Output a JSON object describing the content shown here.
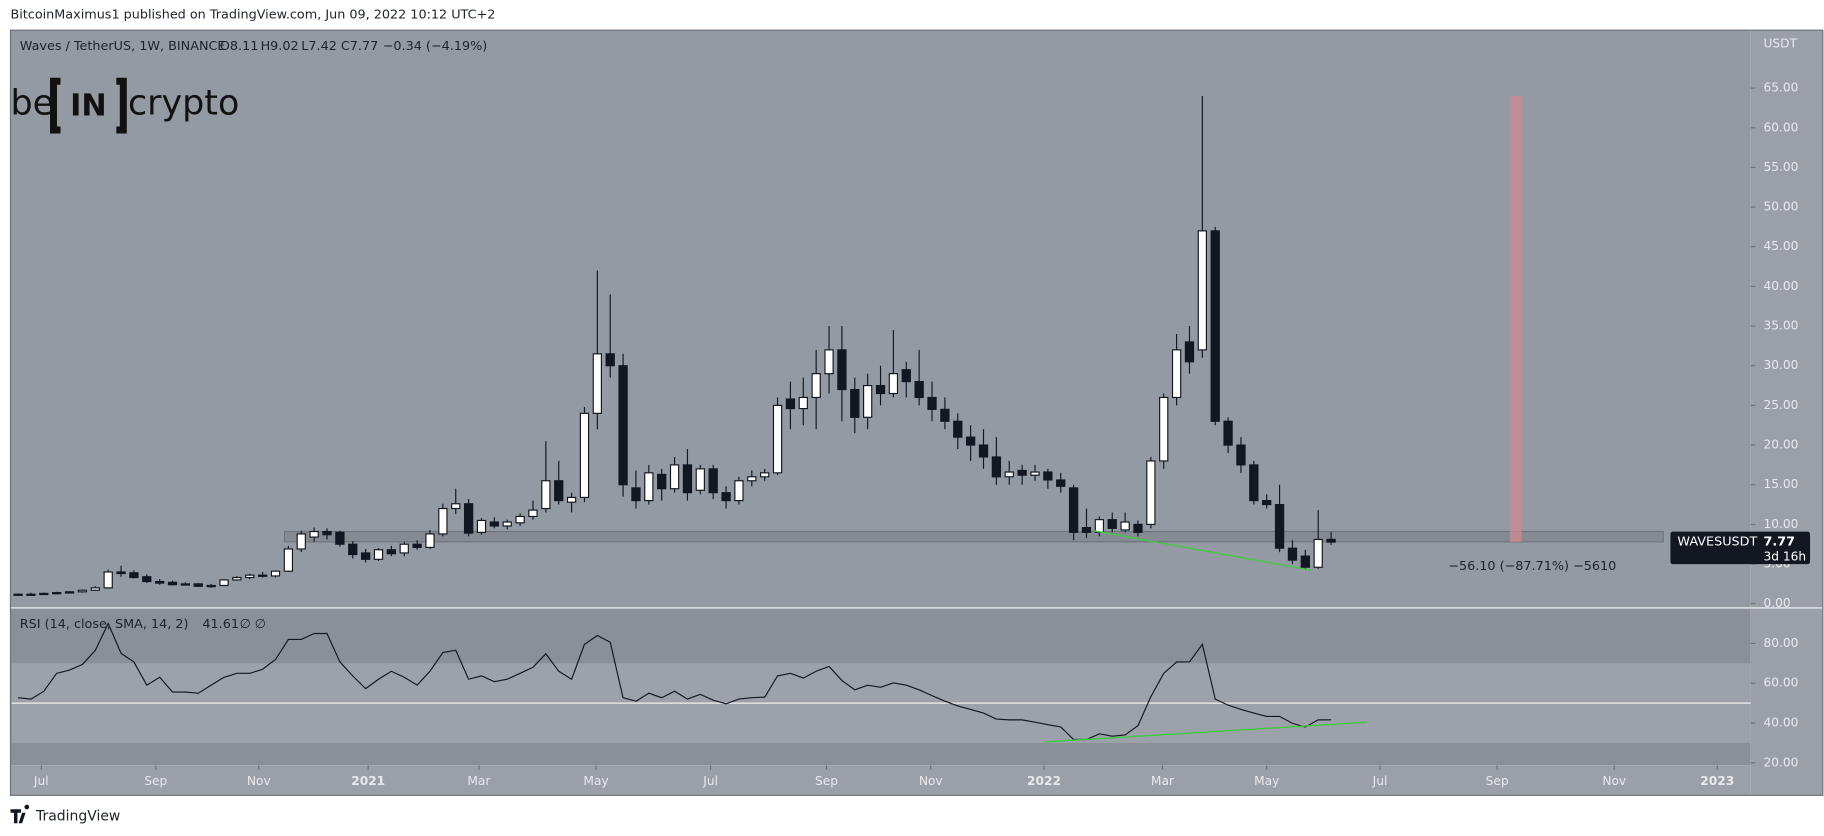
{
  "header": "BitcoinMaximus1 published on TradingView.com, Jun 09, 2022 10:12 UTC+2",
  "footer": "TradingView",
  "logo": [
    "be",
    "IN",
    "crypto"
  ],
  "chart_data": {
    "type": "candlestick",
    "symbol": "Waves / TetherUS, 1W, BINANCE",
    "legend_values": [
      "O8.11",
      "H9.02",
      "L7.42",
      "C7.77",
      "−0.34 (−4.19%)"
    ],
    "axis_unit": "USDT",
    "price_label": "WAVESUSDT",
    "countdown": "3d 16h",
    "measure_text": "−56.10 (−87.71%) −5610",
    "open": [
      1.1,
      1.2,
      1.2,
      1.3,
      1.4,
      1.5,
      1.7,
      2.0,
      4.0,
      3.9,
      3.4,
      2.8,
      2.7,
      2.4,
      2.5,
      2.2,
      2.3,
      3.0,
      3.3,
      3.6,
      3.5,
      4.1,
      6.9,
      8.4,
      9.1,
      9.0,
      7.5,
      6.4,
      5.6,
      6.8,
      6.4,
      7.5,
      7.1,
      8.8,
      12.0,
      12.6,
      9.0,
      10.3,
      9.8,
      10.2,
      11.0,
      12.0,
      15.5,
      12.8,
      13.4,
      24.0,
      31.5,
      30.0,
      14.6,
      13.0,
      16.3,
      14.5,
      17.5,
      14.3,
      17.0,
      14.0,
      13.0,
      15.5,
      16.0,
      16.5,
      25.8,
      24.6,
      26.0,
      29.0,
      32.0,
      27.0,
      23.5,
      27.5,
      26.5,
      29.5,
      28.0,
      26.0,
      24.5,
      23.0,
      21.0,
      20.0,
      18.5,
      16.0,
      16.8,
      16.2,
      16.6,
      15.6,
      14.6,
      9.6,
      9.0,
      10.6,
      9.3,
      10.0,
      10.0,
      18.0,
      26.0,
      33.0,
      32.0,
      47.0,
      23.0,
      20.0,
      17.5,
      13.0,
      12.5,
      7.0,
      6.0,
      4.6,
      8.11
    ],
    "high": [
      1.3,
      1.4,
      1.4,
      1.5,
      1.6,
      1.8,
      2.2,
      4.3,
      4.8,
      4.2,
      3.7,
      3.1,
      2.9,
      2.7,
      2.6,
      2.5,
      3.1,
      3.5,
      3.8,
      4.0,
      4.2,
      7.3,
      9.2,
      9.6,
      9.5,
      9.2,
      7.9,
      6.9,
      7.0,
      7.3,
      7.8,
      8.0,
      9.3,
      12.6,
      14.5,
      13.2,
      10.8,
      10.9,
      10.6,
      11.4,
      13.0,
      20.5,
      18.0,
      14.0,
      24.8,
      42.0,
      39.0,
      31.5,
      16.8,
      17.5,
      17.0,
      18.5,
      19.5,
      17.5,
      17.5,
      14.8,
      16.0,
      16.8,
      17.0,
      26.0,
      28.0,
      28.5,
      32.0,
      35.0,
      35.0,
      28.5,
      29.0,
      30.0,
      34.5,
      30.5,
      32.0,
      28.0,
      26.0,
      24.0,
      22.5,
      22.0,
      21.0,
      18.0,
      17.5,
      17.5,
      17.0,
      16.5,
      15.0,
      12.0,
      11.0,
      11.5,
      11.5,
      10.5,
      18.5,
      26.5,
      34.0,
      35.0,
      64.0,
      47.5,
      23.5,
      21.0,
      18.0,
      13.8,
      15.0,
      8.0,
      6.8,
      11.8,
      9.02
    ],
    "low": [
      1.0,
      1.1,
      1.1,
      1.2,
      1.3,
      1.4,
      1.6,
      1.9,
      3.4,
      3.2,
      2.6,
      2.4,
      2.3,
      2.3,
      2.1,
      2.0,
      2.2,
      2.9,
      3.1,
      3.3,
      3.3,
      4.0,
      6.5,
      7.8,
      8.1,
      7.2,
      5.7,
      5.2,
      5.4,
      6.0,
      6.0,
      6.8,
      6.9,
      8.5,
      11.3,
      8.5,
      8.7,
      9.5,
      9.4,
      9.8,
      10.6,
      11.5,
      12.5,
      11.5,
      12.8,
      22.0,
      28.5,
      13.5,
      12.0,
      12.5,
      13.0,
      14.0,
      13.0,
      13.8,
      13.2,
      12.0,
      12.5,
      14.8,
      15.5,
      16.2,
      22.0,
      22.5,
      22.0,
      26.5,
      23.0,
      21.5,
      22.0,
      25.0,
      26.0,
      26.0,
      25.0,
      23.0,
      22.0,
      19.5,
      18.0,
      17.0,
      15.0,
      15.0,
      15.0,
      15.5,
      14.5,
      14.0,
      8.0,
      8.3,
      8.5,
      9.0,
      9.0,
      8.5,
      9.5,
      17.0,
      25.0,
      29.0,
      31.0,
      22.5,
      19.0,
      16.5,
      12.5,
      12.0,
      6.5,
      5.0,
      4.3,
      4.4,
      7.42
    ],
    "close": [
      1.2,
      1.2,
      1.3,
      1.4,
      1.5,
      1.7,
      2.0,
      4.0,
      3.8,
      3.3,
      2.8,
      2.6,
      2.4,
      2.5,
      2.2,
      2.3,
      3.0,
      3.3,
      3.6,
      3.5,
      4.1,
      6.9,
      8.8,
      9.1,
      8.7,
      7.5,
      6.2,
      5.6,
      6.8,
      6.3,
      7.5,
      7.1,
      8.8,
      12.0,
      12.6,
      8.9,
      10.5,
      9.8,
      10.3,
      11.0,
      11.8,
      15.5,
      13.0,
      13.4,
      24.0,
      31.5,
      30.0,
      15.0,
      13.0,
      16.5,
      14.5,
      17.5,
      14.0,
      17.0,
      14.0,
      13.0,
      15.5,
      16.0,
      16.5,
      25.0,
      24.6,
      26.0,
      29.0,
      32.0,
      27.0,
      23.5,
      27.5,
      26.5,
      29.0,
      28.0,
      26.0,
      24.5,
      23.0,
      21.0,
      20.0,
      18.5,
      16.0,
      16.6,
      16.2,
      16.6,
      15.6,
      14.8,
      9.0,
      9.0,
      10.6,
      9.5,
      10.3,
      9.0,
      18.0,
      26.0,
      32.0,
      30.5,
      47.0,
      23.0,
      20.0,
      17.5,
      13.0,
      12.5,
      7.0,
      5.5,
      4.6,
      8.1,
      7.77
    ],
    "up_color": "#ffffff",
    "down_color": "#131722",
    "xlim": [
      -0.5,
      134.6
    ],
    "xticks": [
      {
        "value": 1.8,
        "label": "Jul"
      },
      {
        "value": 10.7,
        "label": "Sep"
      },
      {
        "value": 18.7,
        "label": "Nov"
      },
      {
        "value": 27.2,
        "label": "2021"
      },
      {
        "value": 35.8,
        "label": "Mar"
      },
      {
        "value": 44.9,
        "label": "May"
      },
      {
        "value": 53.8,
        "label": "Jul"
      },
      {
        "value": 62.8,
        "label": "Sep"
      },
      {
        "value": 70.9,
        "label": "Nov"
      },
      {
        "value": 79.7,
        "label": "2022"
      },
      {
        "value": 88.9,
        "label": "Mar"
      },
      {
        "value": 97.0,
        "label": "May"
      },
      {
        "value": 105.8,
        "label": "Jul"
      },
      {
        "value": 114.9,
        "label": "Sep"
      },
      {
        "value": 124.0,
        "label": "Nov"
      },
      {
        "value": 132.0,
        "label": "2023"
      }
    ],
    "ylim": [
      -0.3,
      72.3
    ],
    "yticks": [
      {
        "value": 0,
        "label": "0.00"
      },
      {
        "value": 5,
        "label": "5.00"
      },
      {
        "value": 10,
        "label": "10.00"
      },
      {
        "value": 15,
        "label": "15.00"
      },
      {
        "value": 20,
        "label": "20.00"
      },
      {
        "value": 25,
        "label": "25.00"
      },
      {
        "value": 30,
        "label": "30.00"
      },
      {
        "value": 35,
        "label": "35.00"
      },
      {
        "value": 40,
        "label": "40.00"
      },
      {
        "value": 45,
        "label": "45.00"
      },
      {
        "value": 50,
        "label": "50.00"
      },
      {
        "value": 55,
        "label": "55.00"
      },
      {
        "value": 60,
        "label": "60.00"
      },
      {
        "value": 65,
        "label": "65.00"
      }
    ],
    "zone": {
      "x": [
        20.7,
        127.8
      ],
      "y": [
        7.8,
        9.1
      ],
      "color": "#7d8088"
    },
    "projection": {
      "x": [
        115.9,
        116.8
      ],
      "y": [
        7.8,
        64
      ],
      "color": "#c98a8e"
    },
    "trendline": {
      "x": [
        83.5,
        100.5
      ],
      "y": [
        9.2,
        4.2
      ],
      "color": "#43c943"
    },
    "rsi": {
      "label": "RSI (14, close, SMA, 14, 2)",
      "legend_extra": [
        "∅",
        "∅"
      ],
      "color": "#131722",
      "values": [
        52.7,
        52,
        56,
        65,
        66.6,
        69.5,
        76.5,
        90,
        75,
        70.7,
        59,
        63,
        55.6,
        55.6,
        55,
        59,
        63,
        65,
        65,
        67,
        72,
        82,
        82,
        85,
        85,
        70.7,
        63.7,
        57.3,
        62,
        66,
        63,
        59,
        66,
        75.4,
        76.6,
        62,
        63.7,
        60.8,
        62,
        65,
        68,
        74.8,
        66,
        62,
        79.5,
        84,
        80.6,
        52.7,
        51,
        55,
        52.7,
        56,
        52,
        54.4,
        51.5,
        49.7,
        52,
        52.7,
        53,
        63.7,
        65,
        62.6,
        66,
        68.4,
        61.4,
        56.7,
        59,
        58,
        60.2,
        59,
        56.7,
        53.8,
        51,
        48.6,
        46.8,
        45,
        42,
        41.6,
        41.6,
        40.4,
        39.2,
        38,
        31.7,
        31.7,
        34.6,
        33.4,
        34,
        38.7,
        53.2,
        65,
        70.7,
        70.7,
        79.5,
        52,
        49,
        46.8,
        45,
        43.3,
        43.3,
        39.8,
        38,
        41.6,
        41.61
      ],
      "ylim": [
        19.4,
        97.6
      ],
      "yticks": [
        {
          "value": 20,
          "label": "20.00"
        },
        {
          "value": 40,
          "label": "40.00"
        },
        {
          "value": 60,
          "label": "60.00"
        },
        {
          "value": 80,
          "label": "80.00"
        }
      ],
      "band": [
        30,
        70
      ],
      "midline": 50,
      "trendline": {
        "x": [
          79.7,
          104.8
        ],
        "y": [
          30.5,
          40.4
        ],
        "color": "#43c943"
      }
    }
  }
}
